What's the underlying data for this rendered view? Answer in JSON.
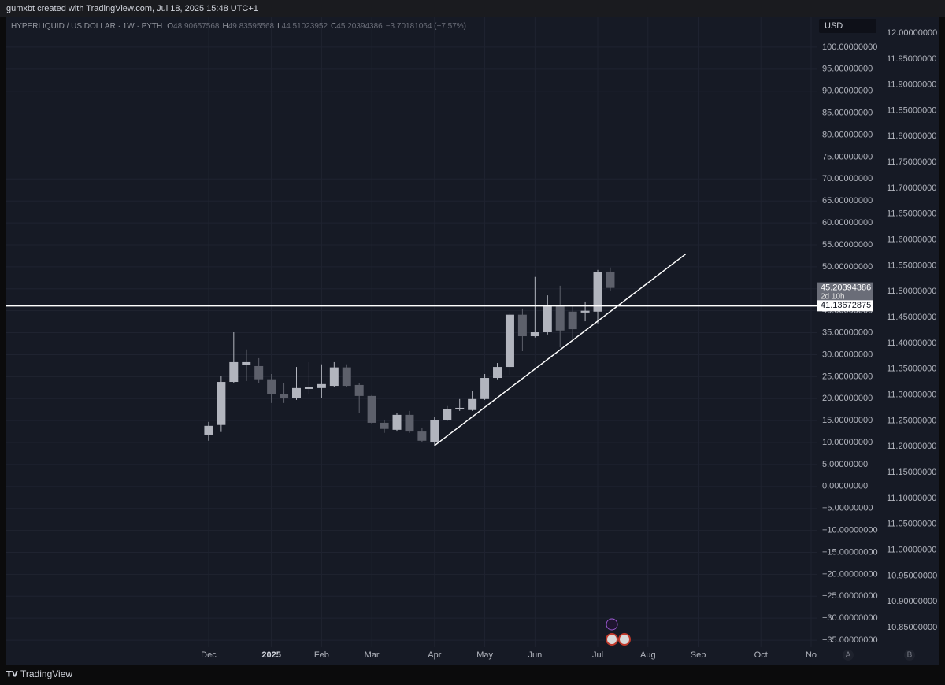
{
  "header": {
    "credit": "gumxbt created with TradingView.com, Jul 18, 2025 15:48 UTC+1"
  },
  "footer": {
    "brand": "TradingView"
  },
  "chart_data": {
    "type": "candlestick",
    "symbol": "HYPERLIQUID / US DOLLAR · 1W · PYTH",
    "ohlc_labels": [
      "O",
      "H",
      "L",
      "C"
    ],
    "change": "−3.70181064 (−7.57%)",
    "currency": "USD",
    "axis_buttons": [
      "A",
      "B"
    ],
    "up_color": "#b2b5be",
    "down_color": "#5d606b",
    "grid": true,
    "categories": [
      "Dec",
      null,
      null,
      null,
      null,
      "2025",
      null,
      null,
      null,
      "Feb",
      null,
      null,
      null,
      "Mar",
      null,
      null,
      null,
      null,
      "Apr",
      null,
      null,
      null,
      "May",
      null,
      null,
      null,
      "Jun",
      null,
      null,
      null,
      null,
      "Jul",
      null,
      null,
      null,
      "Aug",
      null,
      null,
      null,
      "Sep",
      null,
      null,
      null,
      null,
      "Oct",
      null,
      null,
      null,
      "No"
    ],
    "xlim": [
      -16.12,
      48.44
    ],
    "open": [
      11.8,
      14.0,
      23.8,
      27.6,
      27.4,
      24.4,
      21.1,
      20.2,
      22.2,
      22.4,
      22.9,
      27.1,
      23.1,
      20.6,
      14.5,
      12.9,
      16.3,
      12.5,
      10.0,
      15.2,
      17.6,
      17.4,
      19.9,
      24.7,
      27.2,
      39.1,
      34.2,
      35.1,
      41.0,
      39.8,
      39.6,
      39.8,
      48.90657568,
      null,
      null,
      null,
      null,
      null,
      null,
      null,
      null,
      null,
      null,
      null,
      null,
      null,
      null,
      null,
      null
    ],
    "high": [
      14.7,
      25.1,
      35.1,
      31.2,
      29.2,
      25.6,
      23.5,
      27.2,
      28.3,
      27.8,
      28.3,
      27.8,
      23.5,
      20.8,
      15.2,
      16.7,
      17.2,
      13.3,
      15.8,
      18.3,
      19.9,
      21.7,
      25.6,
      28.1,
      39.4,
      40.5,
      47.7,
      43.5,
      45.7,
      41.2,
      42.1,
      49.3,
      49.83595568,
      null,
      null,
      null,
      null,
      null,
      null,
      null,
      null,
      null,
      null,
      null,
      null,
      null,
      null,
      null,
      null
    ],
    "low": [
      10.4,
      12.4,
      23.5,
      24.0,
      23.5,
      19.0,
      19.0,
      19.7,
      21.0,
      20.2,
      22.6,
      22.6,
      16.7,
      14.2,
      12.2,
      12.5,
      12.2,
      10.0,
      9.3,
      14.9,
      17.2,
      17.2,
      19.7,
      24.4,
      25.4,
      30.8,
      33.9,
      34.6,
      31.7,
      33.5,
      37.6,
      37.1,
      44.51023952,
      null,
      null,
      null,
      null,
      null,
      null,
      null,
      null,
      null,
      null,
      null,
      null,
      null,
      null,
      null,
      null
    ],
    "close": [
      13.8,
      23.8,
      28.3,
      28.3,
      24.4,
      21.1,
      20.2,
      22.4,
      22.6,
      23.3,
      27.1,
      22.9,
      20.6,
      14.5,
      13.1,
      16.3,
      12.5,
      10.4,
      15.2,
      17.6,
      17.9,
      19.9,
      24.7,
      27.2,
      39.1,
      34.2,
      35.1,
      41.0,
      35.5,
      35.8,
      40.0,
      48.9,
      45.20394386,
      null,
      null,
      null,
      null,
      null,
      null,
      null,
      null,
      null,
      null,
      null,
      null,
      null,
      null,
      null,
      null
    ],
    "countdown": "2d 10h",
    "hline": 41.13672875,
    "trendline": {
      "x": [
        18,
        38
      ],
      "y": [
        9.3,
        52.9
      ]
    },
    "ylim": [
      -36.6,
      106.8
    ],
    "yticks": [
      {
        "value": 100,
        "label": "100.00000000"
      },
      {
        "value": 95,
        "label": "95.00000000"
      },
      {
        "value": 90,
        "label": "90.00000000"
      },
      {
        "value": 85,
        "label": "85.00000000"
      },
      {
        "value": 80,
        "label": "80.00000000"
      },
      {
        "value": 75,
        "label": "75.00000000"
      },
      {
        "value": 70,
        "label": "70.00000000"
      },
      {
        "value": 65,
        "label": "65.00000000"
      },
      {
        "value": 60,
        "label": "60.00000000"
      },
      {
        "value": 55,
        "label": "55.00000000"
      },
      {
        "value": 50,
        "label": "50.00000000"
      },
      {
        "value": 45,
        "label": "45.00000000"
      },
      {
        "value": 40,
        "label": "40.00000000"
      },
      {
        "value": 35,
        "label": "35.00000000"
      },
      {
        "value": 30,
        "label": "30.00000000"
      },
      {
        "value": 25,
        "label": "25.00000000"
      },
      {
        "value": 20,
        "label": "20.00000000"
      },
      {
        "value": 15,
        "label": "15.00000000"
      },
      {
        "value": 10,
        "label": "10.00000000"
      },
      {
        "value": 5,
        "label": "5.00000000"
      },
      {
        "value": 0,
        "label": "0.00000000"
      },
      {
        "value": -5,
        "label": "−5.00000000"
      },
      {
        "value": -10,
        "label": "−10.00000000"
      },
      {
        "value": -15,
        "label": "−15.00000000"
      },
      {
        "value": -20,
        "label": "−20.00000000"
      },
      {
        "value": -25,
        "label": "−25.00000000"
      },
      {
        "value": -30,
        "label": "−30.00000000"
      },
      {
        "value": -35,
        "label": "−35.00000000"
      }
    ],
    "y2lim": [
      10.812,
      12.0305
    ],
    "y2ticks": [
      {
        "value": 12.0,
        "label": "12.00000000"
      },
      {
        "value": 11.95,
        "label": "11.95000000"
      },
      {
        "value": 11.9,
        "label": "11.90000000"
      },
      {
        "value": 11.85,
        "label": "11.85000000"
      },
      {
        "value": 11.8,
        "label": "11.80000000"
      },
      {
        "value": 11.75,
        "label": "11.75000000"
      },
      {
        "value": 11.7,
        "label": "11.70000000"
      },
      {
        "value": 11.65,
        "label": "11.65000000"
      },
      {
        "value": 11.6,
        "label": "11.60000000"
      },
      {
        "value": 11.55,
        "label": "11.55000000"
      },
      {
        "value": 11.5,
        "label": "11.50000000"
      },
      {
        "value": 11.45,
        "label": "11.45000000"
      },
      {
        "value": 11.4,
        "label": "11.40000000"
      },
      {
        "value": 11.35,
        "label": "11.35000000"
      },
      {
        "value": 11.3,
        "label": "11.30000000"
      },
      {
        "value": 11.25,
        "label": "11.25000000"
      },
      {
        "value": 11.2,
        "label": "11.20000000"
      },
      {
        "value": 11.15,
        "label": "11.15000000"
      },
      {
        "value": 11.1,
        "label": "11.10000000"
      },
      {
        "value": 11.05,
        "label": "11.05000000"
      },
      {
        "value": 11.0,
        "label": "11.00000000"
      },
      {
        "value": 10.95,
        "label": "10.95000000"
      },
      {
        "value": 10.9,
        "label": "10.90000000"
      },
      {
        "value": 10.85,
        "label": "10.85000000"
      }
    ]
  }
}
